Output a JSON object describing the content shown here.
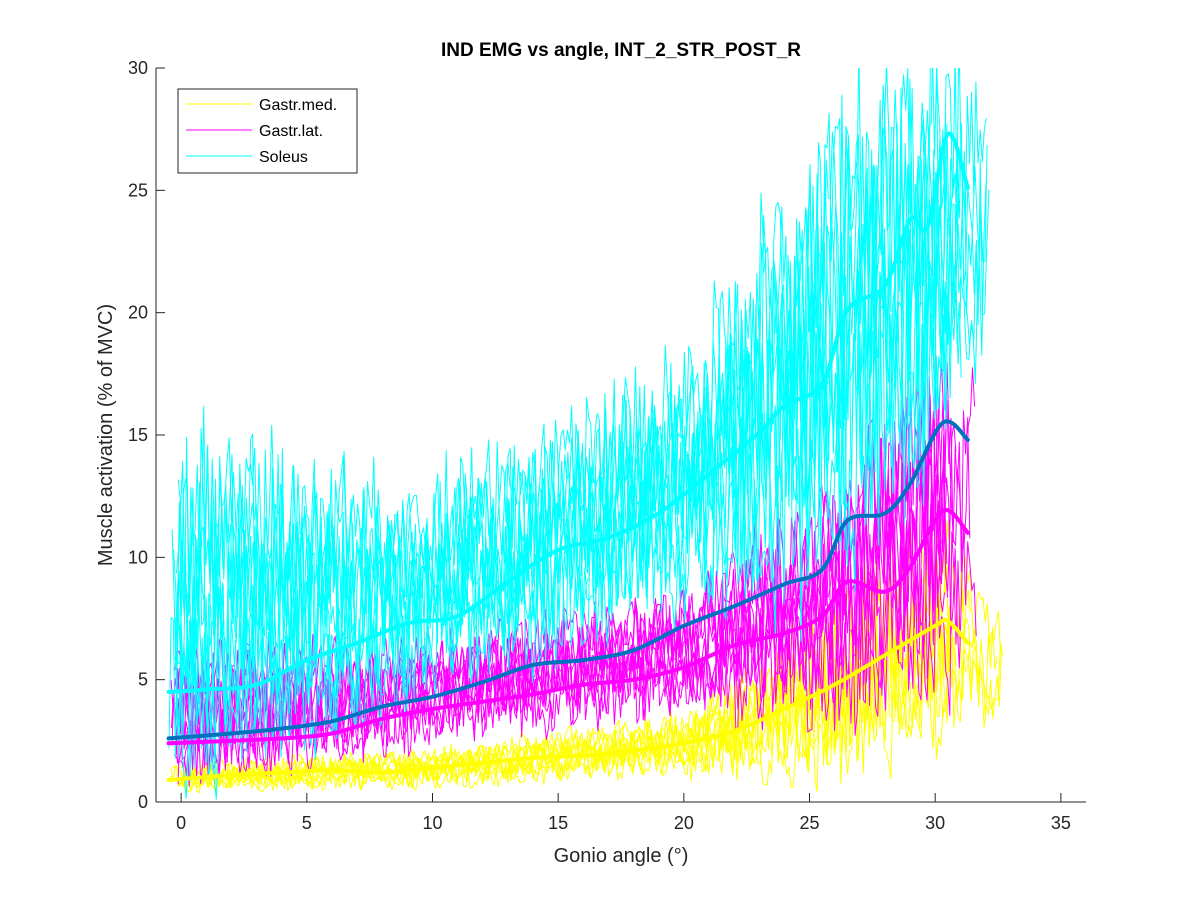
{
  "chart_data": {
    "type": "line",
    "title": "IND EMG vs angle, INT_2_STR_POST_R",
    "xlabel": "Gonio angle (°)",
    "ylabel": "Muscle activation (% of MVC)",
    "xlim": [
      -1,
      36
    ],
    "ylim": [
      0,
      30
    ],
    "xticks": [
      0,
      5,
      10,
      15,
      20,
      25,
      30,
      35
    ],
    "yticks": [
      0,
      5,
      10,
      15,
      20,
      25,
      30
    ],
    "grid": false,
    "legend_position": "top-left",
    "legend": [
      "Gastr.med.",
      "Gastr.lat.",
      "Soleus"
    ],
    "colors": {
      "Gastr.med.": "#FFFF00",
      "Gastr.lat.": "#FF00FF",
      "Soleus": "#00FFFF",
      "overall_mean": "#0072BD"
    },
    "series": [
      {
        "name": "Gastr.med.",
        "role": "mean",
        "x": [
          -0.5,
          2,
          4,
          6,
          8,
          10,
          12,
          14,
          16,
          18,
          20,
          22,
          24,
          26,
          28,
          30,
          30.5,
          31.3
        ],
        "y": [
          0.9,
          1.1,
          1.2,
          1.3,
          1.2,
          1.4,
          1.6,
          1.8,
          1.9,
          2.1,
          2.4,
          2.9,
          3.8,
          4.8,
          6.0,
          7.2,
          7.4,
          6.5
        ]
      },
      {
        "name": "Gastr.lat.",
        "role": "mean",
        "x": [
          -0.5,
          2,
          4,
          6,
          8,
          10,
          12,
          14,
          16,
          18,
          20,
          22,
          24,
          25.5,
          26.5,
          28,
          29,
          30.3,
          31.3
        ],
        "y": [
          2.4,
          2.5,
          2.6,
          2.8,
          3.4,
          3.8,
          4.1,
          4.4,
          4.8,
          5.0,
          5.5,
          6.4,
          6.9,
          7.6,
          9.0,
          8.6,
          9.6,
          11.9,
          11.0
        ]
      },
      {
        "name": "Soleus",
        "role": "mean",
        "x": [
          -0.5,
          1,
          3,
          5,
          7,
          9,
          11,
          13,
          15,
          17,
          19,
          21,
          23,
          24,
          25.5,
          26.5,
          28,
          29,
          29.7,
          30.5,
          31.3
        ],
        "y": [
          4.5,
          4.6,
          4.8,
          5.8,
          6.5,
          7.3,
          7.6,
          9.0,
          10.3,
          10.8,
          11.8,
          13.4,
          15.1,
          16.2,
          17.1,
          20.1,
          21.1,
          23.8,
          23.5,
          27.3,
          25.1
        ]
      },
      {
        "name": "",
        "role": "overall-mean",
        "x": [
          -0.5,
          2,
          4,
          6,
          8,
          10,
          12,
          14,
          16,
          18,
          20,
          22,
          24,
          25.5,
          26.5,
          28,
          29,
          30.3,
          31.3
        ],
        "y": [
          2.6,
          2.8,
          3.0,
          3.3,
          3.9,
          4.3,
          4.9,
          5.6,
          5.8,
          6.2,
          7.2,
          8.0,
          8.9,
          9.5,
          11.5,
          11.8,
          13.0,
          15.5,
          14.8
        ]
      }
    ],
    "trial_bands": [
      {
        "name": "Gastr.med.",
        "x_start": -0.5,
        "x_end": 32.8,
        "traces": 9,
        "lower": [
          [
            -0.5,
            0.4
          ],
          [
            10,
            0.6
          ],
          [
            20,
            1.2
          ],
          [
            26,
            1.2
          ],
          [
            30,
            2.5
          ],
          [
            32.8,
            4.0
          ]
        ],
        "upper": [
          [
            -0.5,
            1.5
          ],
          [
            10,
            2.2
          ],
          [
            20,
            3.5
          ],
          [
            26,
            8.0
          ],
          [
            30,
            11.5
          ],
          [
            32.8,
            8.0
          ]
        ]
      },
      {
        "name": "Gastr.lat.",
        "x_start": -0.5,
        "x_end": 32.8,
        "traces": 9,
        "lower": [
          [
            -0.5,
            0.8
          ],
          [
            10,
            2.5
          ],
          [
            20,
            3.8
          ],
          [
            26,
            3.5
          ],
          [
            30,
            5.0
          ],
          [
            32.8,
            6.0
          ]
        ],
        "upper": [
          [
            -0.5,
            6.0
          ],
          [
            10,
            6.5
          ],
          [
            20,
            8.5
          ],
          [
            26,
            13.0
          ],
          [
            30,
            18.0
          ],
          [
            32.8,
            17.0
          ]
        ]
      },
      {
        "name": "Soleus",
        "x_start": -0.5,
        "x_end": 32.8,
        "traces": 9,
        "lower": [
          [
            -0.5,
            0.5
          ],
          [
            10,
            4.5
          ],
          [
            20,
            8.0
          ],
          [
            26,
            9.0
          ],
          [
            30,
            14.0
          ],
          [
            32.8,
            20.0
          ]
        ],
        "upper": [
          [
            -0.5,
            15.0
          ],
          [
            10,
            13.0
          ],
          [
            20,
            18.0
          ],
          [
            26,
            28.5
          ],
          [
            30,
            30.0
          ],
          [
            32.8,
            30.0
          ]
        ]
      }
    ]
  }
}
